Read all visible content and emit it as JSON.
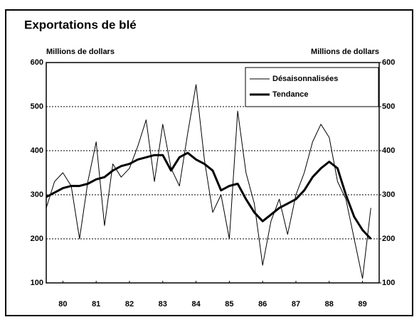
{
  "chart_data": {
    "type": "line",
    "title": "Exportations de blé",
    "ylabel": "Millions de dollars",
    "y2label": "Millions de dollars",
    "x": [
      80,
      80.25,
      80.5,
      80.75,
      81,
      81.25,
      81.5,
      81.75,
      82,
      82.25,
      82.5,
      82.75,
      83,
      83.25,
      83.5,
      83.75,
      84,
      84.25,
      84.5,
      84.75,
      85,
      85.25,
      85.5,
      85.75,
      86,
      86.25,
      86.5,
      86.75,
      87,
      87.25,
      87.5,
      87.75,
      88,
      88.25,
      88.5,
      88.75,
      89,
      89.25,
      89.5,
      89.75
    ],
    "series": [
      {
        "name": "Désaisonnalisées",
        "color": "#000000",
        "width": 1,
        "values": [
          270,
          330,
          350,
          320,
          200,
          330,
          420,
          230,
          370,
          340,
          360,
          410,
          470,
          330,
          460,
          360,
          320,
          440,
          550,
          380,
          260,
          300,
          200,
          490,
          350,
          280,
          140,
          240,
          290,
          210,
          300,
          350,
          420,
          460,
          430,
          330,
          290,
          200,
          110,
          270
        ]
      },
      {
        "name": "Tendance",
        "color": "#000000",
        "width": 3,
        "values": [
          295,
          305,
          315,
          320,
          320,
          325,
          335,
          340,
          355,
          365,
          370,
          380,
          385,
          390,
          390,
          355,
          385,
          395,
          380,
          370,
          355,
          310,
          320,
          325,
          290,
          260,
          240,
          255,
          270,
          280,
          290,
          310,
          340,
          360,
          375,
          360,
          300,
          250,
          220,
          200
        ]
      }
    ],
    "xlim": [
      80,
      90
    ],
    "xticks": [
      {
        "value": 80.5,
        "label": "80"
      },
      {
        "value": 81.5,
        "label": "81"
      },
      {
        "value": 82.5,
        "label": "82"
      },
      {
        "value": 83.5,
        "label": "83"
      },
      {
        "value": 84.5,
        "label": "84"
      },
      {
        "value": 85.5,
        "label": "85"
      },
      {
        "value": 86.5,
        "label": "86"
      },
      {
        "value": 87.5,
        "label": "87"
      },
      {
        "value": 88.5,
        "label": "88"
      },
      {
        "value": 89.5,
        "label": "89"
      }
    ],
    "ylim": [
      100,
      600
    ],
    "yticks": [
      100,
      200,
      300,
      400,
      500,
      600
    ],
    "y2lim": [
      100,
      600
    ],
    "y2ticks": [
      100,
      200,
      300,
      400,
      500,
      600
    ],
    "grid": true,
    "legend": "upper right"
  }
}
